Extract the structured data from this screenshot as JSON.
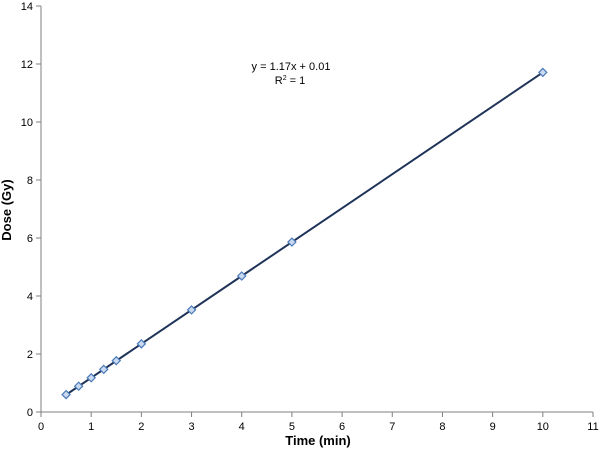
{
  "chart_data": {
    "type": "scatter",
    "title": "",
    "xlabel": "Time (min)",
    "ylabel": "Dose (Gy)",
    "xlim": [
      0,
      11
    ],
    "ylim": [
      0,
      14
    ],
    "xticks": [
      0,
      1,
      2,
      3,
      4,
      5,
      6,
      7,
      8,
      9,
      10,
      11
    ],
    "yticks": [
      0,
      2,
      4,
      6,
      8,
      10,
      12,
      14
    ],
    "grid": false,
    "legend": "none",
    "series": [
      {
        "marker": "diamond",
        "marker_color": "#4a7ab8",
        "x": [
          0.5,
          0.75,
          1,
          1.25,
          1.5,
          2,
          3,
          4,
          5,
          10
        ],
        "y": [
          0.6,
          0.89,
          1.18,
          1.47,
          1.77,
          2.35,
          3.52,
          4.69,
          5.86,
          11.71
        ]
      }
    ],
    "trendline": {
      "type": "linear",
      "slope": 1.17,
      "intercept": 0.01,
      "x_range": [
        0.5,
        10
      ],
      "color": "#1f3458"
    },
    "annotations": {
      "equation": "y = 1.17x + 0.01",
      "r2_prefix": "R",
      "r2_exp": "2",
      "r2_suffix": " = 1"
    }
  }
}
